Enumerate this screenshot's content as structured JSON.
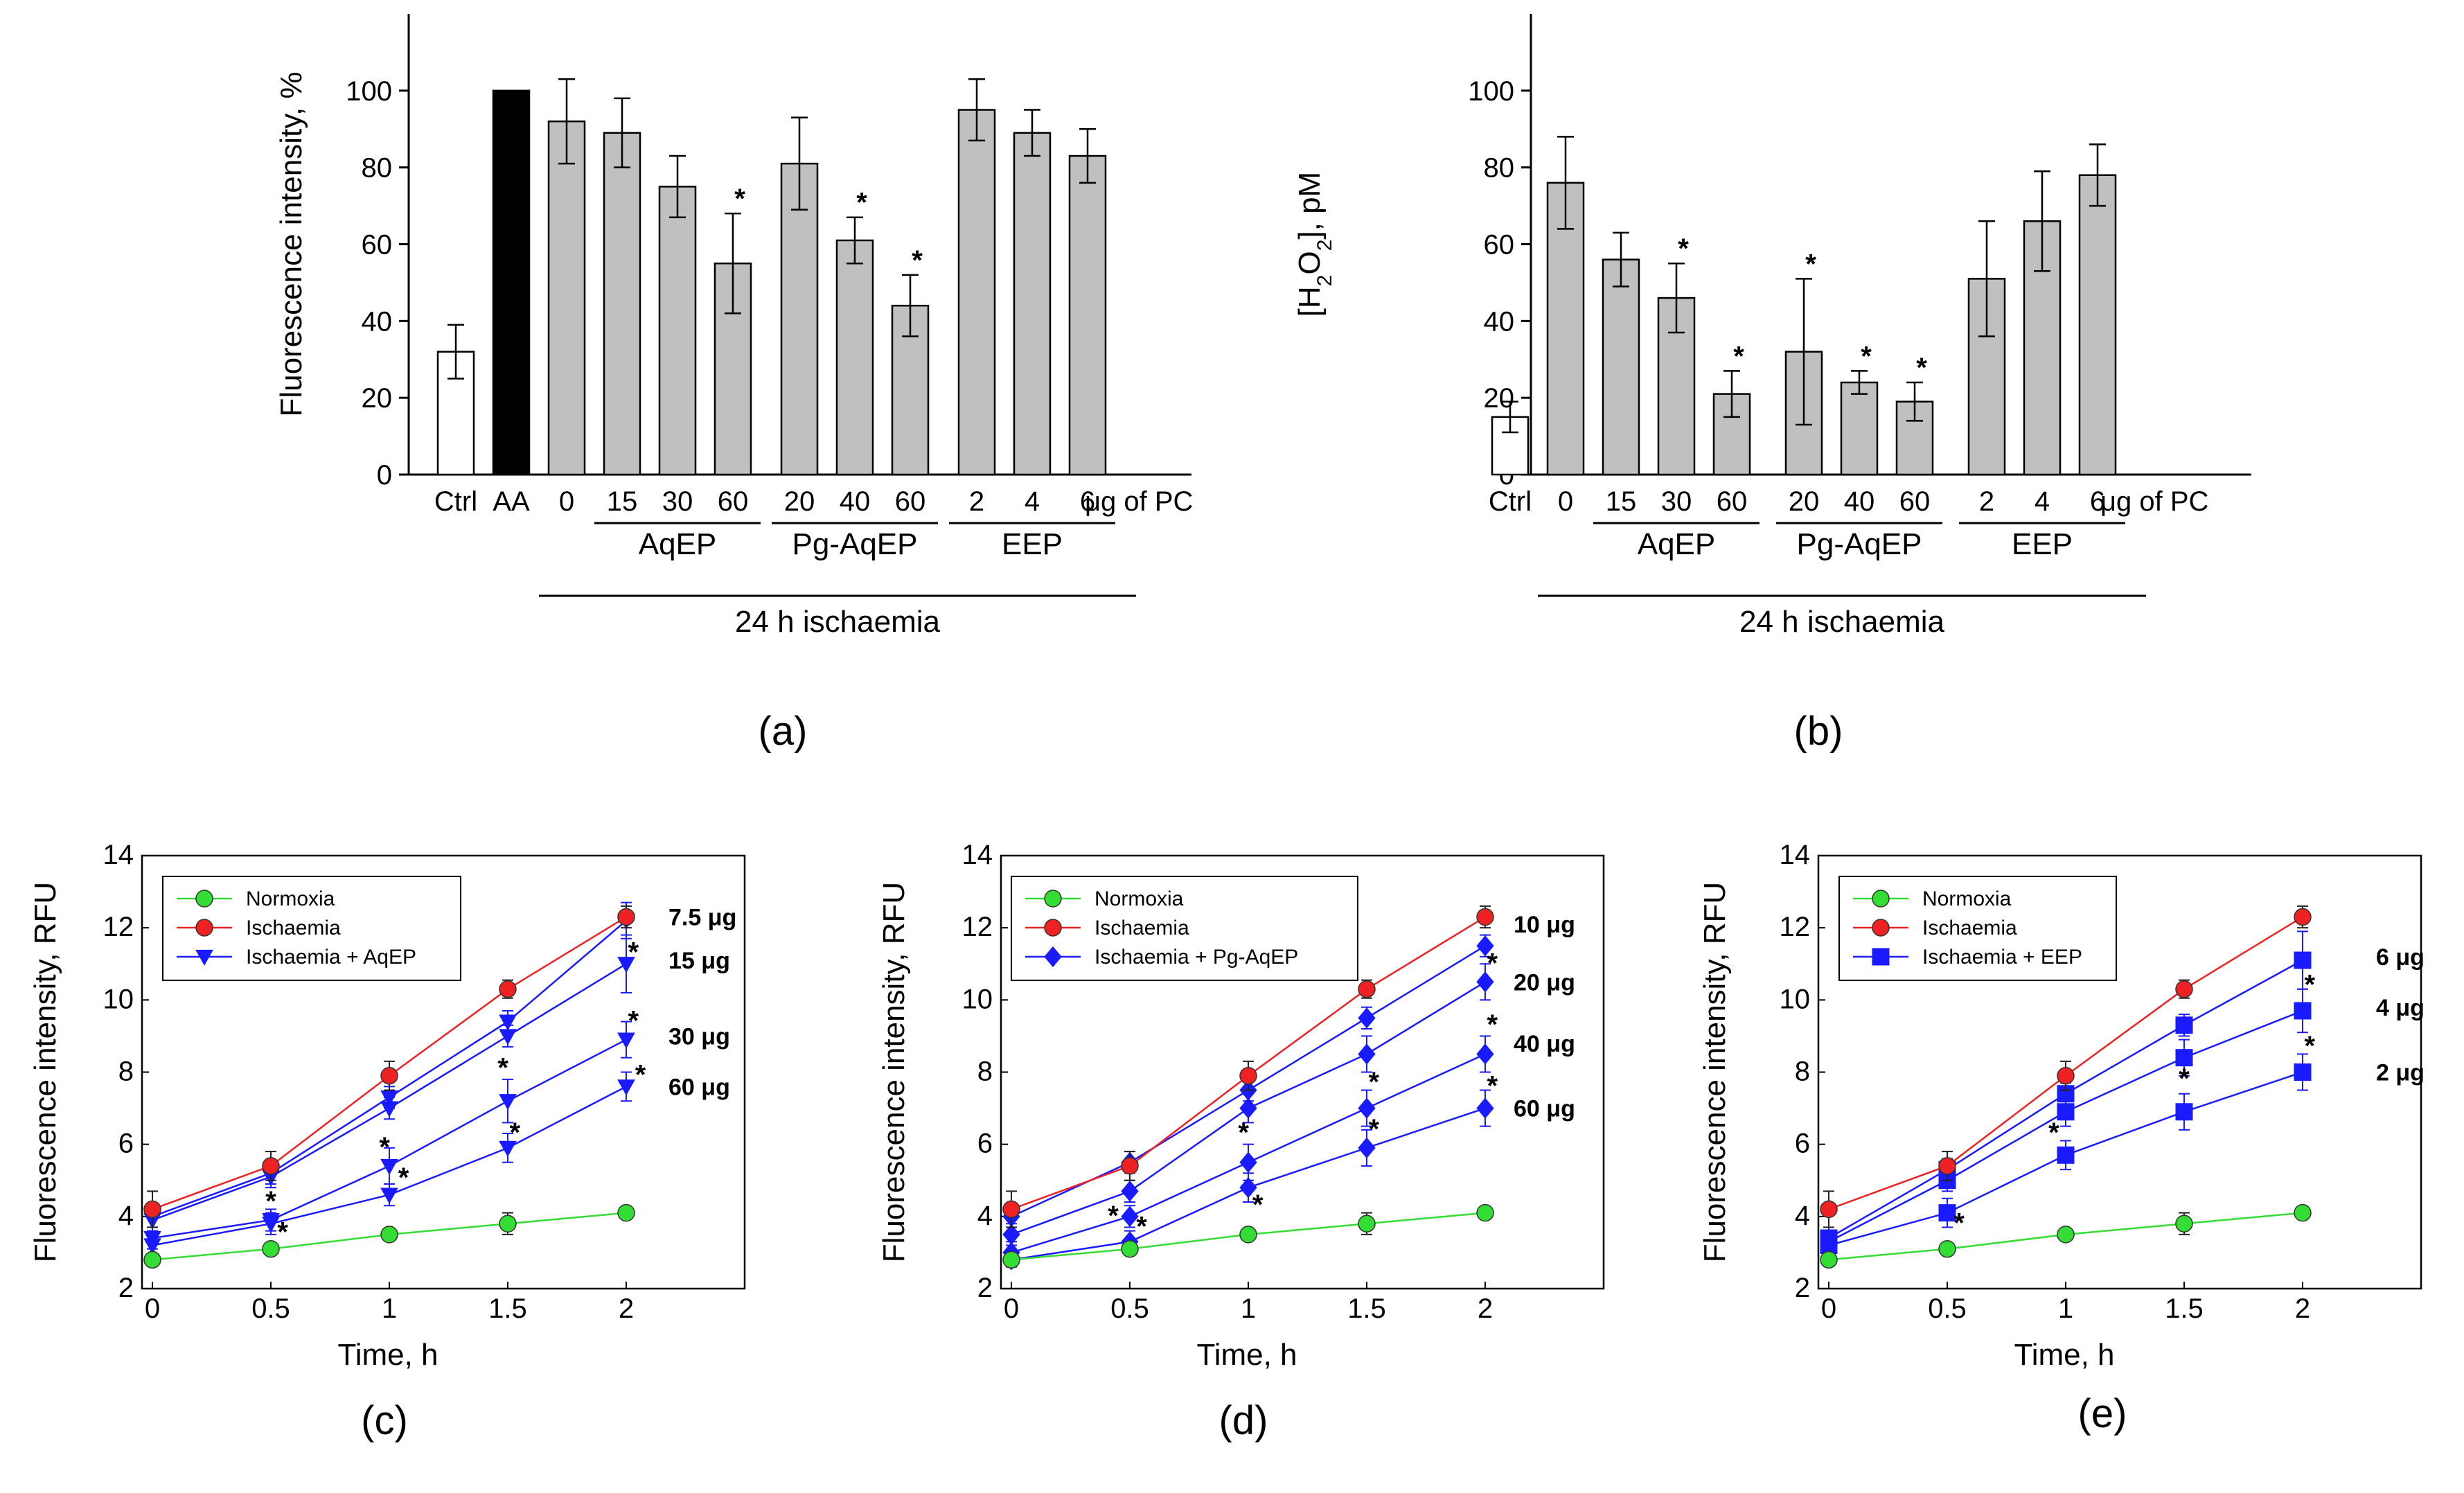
{
  "captions": {
    "a": "(a)",
    "b": "(b)",
    "c": "(c)",
    "d": "(d)",
    "e": "(e)"
  },
  "chart_data": [
    {
      "id": "a",
      "type": "bar",
      "ylabel": "Fluorescence intensity, %",
      "ylim": [
        0,
        120
      ],
      "yticks": [
        0,
        20,
        40,
        60,
        80,
        100
      ],
      "categories": [
        "Ctrl",
        "AA",
        "0",
        "15",
        "30",
        "60",
        "20",
        "40",
        "60",
        "2",
        "4",
        "6"
      ],
      "values": [
        32,
        100,
        92,
        89,
        75,
        55,
        81,
        61,
        44,
        95,
        89,
        83
      ],
      "errors": [
        7,
        0,
        11,
        9,
        8,
        13,
        12,
        6,
        8,
        8,
        6,
        7
      ],
      "significant": [
        false,
        false,
        false,
        false,
        false,
        true,
        false,
        true,
        true,
        false,
        false,
        false
      ],
      "fills": [
        "#ffffff",
        "#000000",
        "#c0c0c0",
        "#c0c0c0",
        "#c0c0c0",
        "#c0c0c0",
        "#c0c0c0",
        "#c0c0c0",
        "#c0c0c0",
        "#c0c0c0",
        "#c0c0c0",
        "#c0c0c0"
      ],
      "unit_label": "μg of PC",
      "groups": [
        {
          "label": "AqEP",
          "from": 3,
          "to": 5
        },
        {
          "label": "Pg-AqEP",
          "from": 6,
          "to": 8
        },
        {
          "label": "EEP",
          "from": 9,
          "to": 11
        }
      ],
      "supergroup": {
        "label": "24 h ischaemia",
        "from": 2,
        "to": 11
      },
      "significance_marker": "*"
    },
    {
      "id": "b",
      "type": "bar",
      "ylabel": "[H2O2], pM",
      "ylim": [
        0,
        120
      ],
      "yticks": [
        0,
        20,
        40,
        60,
        80,
        100
      ],
      "categories": [
        "Ctrl",
        "0",
        "15",
        "30",
        "60",
        "20",
        "40",
        "60",
        "2",
        "4",
        "6"
      ],
      "values": [
        15,
        76,
        56,
        46,
        21,
        32,
        24,
        19,
        51,
        66,
        78
      ],
      "errors": [
        4,
        12,
        7,
        9,
        6,
        19,
        3,
        5,
        15,
        13,
        8
      ],
      "significant": [
        false,
        false,
        false,
        true,
        true,
        true,
        true,
        true,
        false,
        false,
        false
      ],
      "fills": [
        "#ffffff",
        "#c0c0c0",
        "#c0c0c0",
        "#c0c0c0",
        "#c0c0c0",
        "#c0c0c0",
        "#c0c0c0",
        "#c0c0c0",
        "#c0c0c0",
        "#c0c0c0",
        "#c0c0c0"
      ],
      "unit_label": "μg of PC",
      "groups": [
        {
          "label": "AqEP",
          "from": 2,
          "to": 4
        },
        {
          "label": "Pg-AqEP",
          "from": 5,
          "to": 7
        },
        {
          "label": "EEP",
          "from": 8,
          "to": 10
        }
      ],
      "supergroup": {
        "label": "24 h ischaemia",
        "from": 1,
        "to": 10
      },
      "significance_marker": "*"
    },
    {
      "id": "c",
      "type": "line",
      "xlabel": "Time, h",
      "ylabel": "Fluorescence intensity, RFU",
      "xlim": [
        0,
        2.5
      ],
      "ylim": [
        2,
        14
      ],
      "xticks": [
        0,
        0.5,
        1,
        1.5,
        2
      ],
      "xtick_labels": [
        "0",
        "0.5",
        "1",
        "1.5",
        "2"
      ],
      "yticks": [
        2,
        4,
        6,
        8,
        10,
        12,
        14
      ],
      "x": [
        0,
        0.5,
        1,
        1.5,
        2
      ],
      "legend": [
        "Normoxia",
        "Ischaemia",
        "Ischaemia + AqEP"
      ],
      "series": [
        {
          "name": "Normoxia",
          "values": [
            2.8,
            3.1,
            3.5,
            3.8,
            4.1
          ],
          "errors": [
            0.15,
            0.15,
            0.15,
            0.3,
            0.15
          ],
          "color": "#33dd33",
          "marker": "circle"
        },
        {
          "name": "Ischaemia",
          "values": [
            4.2,
            5.4,
            7.9,
            10.3,
            12.3
          ],
          "errors": [
            0.5,
            0.4,
            0.4,
            0.25,
            0.3
          ],
          "color": "#ee2222",
          "marker": "circle"
        },
        {
          "name": "7.5 μg",
          "values": [
            4.0,
            5.2,
            7.3,
            9.4,
            12.2
          ],
          "errors": [
            0.3,
            0.3,
            0.3,
            0.3,
            0.5
          ],
          "color": "#1a1aff",
          "marker": "triangle-down"
        },
        {
          "name": "15 μg",
          "values": [
            3.9,
            5.1,
            7.0,
            9.0,
            11.0
          ],
          "errors": [
            0.3,
            0.3,
            0.3,
            0.3,
            0.8
          ],
          "color": "#1a1aff",
          "marker": "triangle-down"
        },
        {
          "name": "30 μg",
          "values": [
            3.4,
            3.9,
            5.4,
            7.2,
            8.9
          ],
          "errors": [
            0.3,
            0.3,
            0.5,
            0.6,
            0.5
          ],
          "color": "#1a1aff",
          "marker": "triangle-down"
        },
        {
          "name": "60 μg",
          "values": [
            3.2,
            3.8,
            4.6,
            5.9,
            7.6
          ],
          "errors": [
            0.3,
            0.3,
            0.3,
            0.4,
            0.4
          ],
          "color": "#1a1aff",
          "marker": "triangle-down"
        }
      ],
      "end_labels": [
        {
          "text": "7.5 μg",
          "y": 12.3
        },
        {
          "text": "15 μg",
          "y": 11.1
        },
        {
          "text": "30 μg",
          "y": 9.0
        },
        {
          "text": "60 μg",
          "y": 7.6
        }
      ],
      "significance": [
        {
          "x": 0.5,
          "y": 4.4
        },
        {
          "x": 0.55,
          "y": 3.55
        },
        {
          "x": 0.98,
          "y": 5.9
        },
        {
          "x": 1.06,
          "y": 5.05
        },
        {
          "x": 1.48,
          "y": 8.1
        },
        {
          "x": 1.53,
          "y": 6.3
        },
        {
          "x": 2.03,
          "y": 11.3
        },
        {
          "x": 2.03,
          "y": 9.4
        },
        {
          "x": 2.06,
          "y": 7.9
        }
      ],
      "significance_marker": "*"
    },
    {
      "id": "d",
      "type": "line",
      "xlabel": "Time, h",
      "ylabel": "Fluorescence intensity, RFU",
      "xlim": [
        0,
        2.5
      ],
      "ylim": [
        2,
        14
      ],
      "xticks": [
        0,
        0.5,
        1,
        1.5,
        2
      ],
      "xtick_labels": [
        "0",
        "0.5",
        "1",
        "1.5",
        "2"
      ],
      "yticks": [
        2,
        4,
        6,
        8,
        10,
        12,
        14
      ],
      "x": [
        0,
        0.5,
        1,
        1.5,
        2
      ],
      "legend": [
        "Normoxia",
        "Ischaemia",
        "Ischaemia + Pg-AqEP"
      ],
      "series": [
        {
          "name": "Normoxia",
          "values": [
            2.8,
            3.1,
            3.5,
            3.8,
            4.1
          ],
          "errors": [
            0.15,
            0.15,
            0.15,
            0.3,
            0.15
          ],
          "color": "#33dd33",
          "marker": "circle"
        },
        {
          "name": "Ischaemia",
          "values": [
            4.2,
            5.4,
            7.9,
            10.3,
            12.3
          ],
          "errors": [
            0.5,
            0.4,
            0.4,
            0.25,
            0.3
          ],
          "color": "#ee2222",
          "marker": "circle"
        },
        {
          "name": "10 μg",
          "values": [
            4.0,
            5.5,
            7.5,
            9.5,
            11.5
          ],
          "errors": [
            0.3,
            0.3,
            0.3,
            0.3,
            0.3
          ],
          "color": "#1a1aff",
          "marker": "diamond"
        },
        {
          "name": "20 μg",
          "values": [
            3.5,
            4.7,
            7.0,
            8.5,
            10.5
          ],
          "errors": [
            0.3,
            0.3,
            0.4,
            0.5,
            0.5
          ],
          "color": "#1a1aff",
          "marker": "diamond"
        },
        {
          "name": "40 μg",
          "values": [
            3.0,
            4.0,
            5.5,
            7.0,
            8.5
          ],
          "errors": [
            0.3,
            0.3,
            0.5,
            0.5,
            0.5
          ],
          "color": "#1a1aff",
          "marker": "diamond"
        },
        {
          "name": "60 μg",
          "values": [
            2.8,
            3.3,
            4.8,
            5.9,
            7.0
          ],
          "errors": [
            0.2,
            0.3,
            0.4,
            0.5,
            0.5
          ],
          "color": "#1a1aff",
          "marker": "diamond"
        }
      ],
      "end_labels": [
        {
          "text": "10 μg",
          "y": 12.1
        },
        {
          "text": "20 μg",
          "y": 10.5
        },
        {
          "text": "40 μg",
          "y": 8.8
        },
        {
          "text": "60 μg",
          "y": 7.0
        }
      ],
      "significance": [
        {
          "x": 0.43,
          "y": 4.0
        },
        {
          "x": 0.55,
          "y": 3.7
        },
        {
          "x": 0.98,
          "y": 6.3
        },
        {
          "x": 1.04,
          "y": 4.3
        },
        {
          "x": 1.53,
          "y": 7.7
        },
        {
          "x": 1.53,
          "y": 6.4
        },
        {
          "x": 2.03,
          "y": 11.0
        },
        {
          "x": 2.03,
          "y": 9.3
        },
        {
          "x": 2.03,
          "y": 7.6
        }
      ],
      "significance_marker": "*"
    },
    {
      "id": "e",
      "type": "line",
      "xlabel": "Time, h",
      "ylabel": "Fluorescence intensity, RFU",
      "xlim": [
        0,
        2.5
      ],
      "ylim": [
        2,
        14
      ],
      "xticks": [
        0,
        0.5,
        1,
        1.5,
        2
      ],
      "xtick_labels": [
        "0",
        "0.5",
        "1",
        "1.5",
        "2"
      ],
      "yticks": [
        2,
        4,
        6,
        8,
        10,
        12,
        14
      ],
      "x": [
        0,
        0.5,
        1,
        1.5,
        2
      ],
      "legend": [
        "Normoxia",
        "Ischaemia",
        "Ischaemia + EEP"
      ],
      "series": [
        {
          "name": "Normoxia",
          "values": [
            2.8,
            3.1,
            3.5,
            3.8,
            4.1
          ],
          "errors": [
            0.15,
            0.15,
            0.15,
            0.3,
            0.15
          ],
          "color": "#33dd33",
          "marker": "circle"
        },
        {
          "name": "Ischaemia",
          "values": [
            4.2,
            5.4,
            7.9,
            10.3,
            12.3
          ],
          "errors": [
            0.5,
            0.4,
            0.4,
            0.25,
            0.3
          ],
          "color": "#ee2222",
          "marker": "circle"
        },
        {
          "name": "6 μg",
          "values": [
            3.4,
            5.3,
            7.4,
            9.3,
            11.1
          ],
          "errors": [
            0.3,
            0.3,
            0.3,
            0.3,
            0.8
          ],
          "color": "#1a1aff",
          "marker": "square"
        },
        {
          "name": "4 μg",
          "values": [
            3.3,
            5.0,
            6.9,
            8.4,
            9.7
          ],
          "errors": [
            0.3,
            0.3,
            0.4,
            0.5,
            0.6
          ],
          "color": "#1a1aff",
          "marker": "square"
        },
        {
          "name": "2 μg",
          "values": [
            3.2,
            4.1,
            5.7,
            6.9,
            8.0
          ],
          "errors": [
            0.3,
            0.4,
            0.4,
            0.5,
            0.5
          ],
          "color": "#1a1aff",
          "marker": "square"
        }
      ],
      "end_labels": [
        {
          "text": "6 μg",
          "y": 11.2
        },
        {
          "text": "4 μg",
          "y": 9.8
        },
        {
          "text": "2 μg",
          "y": 8.0
        }
      ],
      "significance": [
        {
          "x": 0.55,
          "y": 3.8
        },
        {
          "x": 0.95,
          "y": 6.3
        },
        {
          "x": 1.5,
          "y": 7.8
        },
        {
          "x": 2.03,
          "y": 10.4
        },
        {
          "x": 2.03,
          "y": 8.7
        }
      ],
      "significance_marker": "*"
    }
  ]
}
